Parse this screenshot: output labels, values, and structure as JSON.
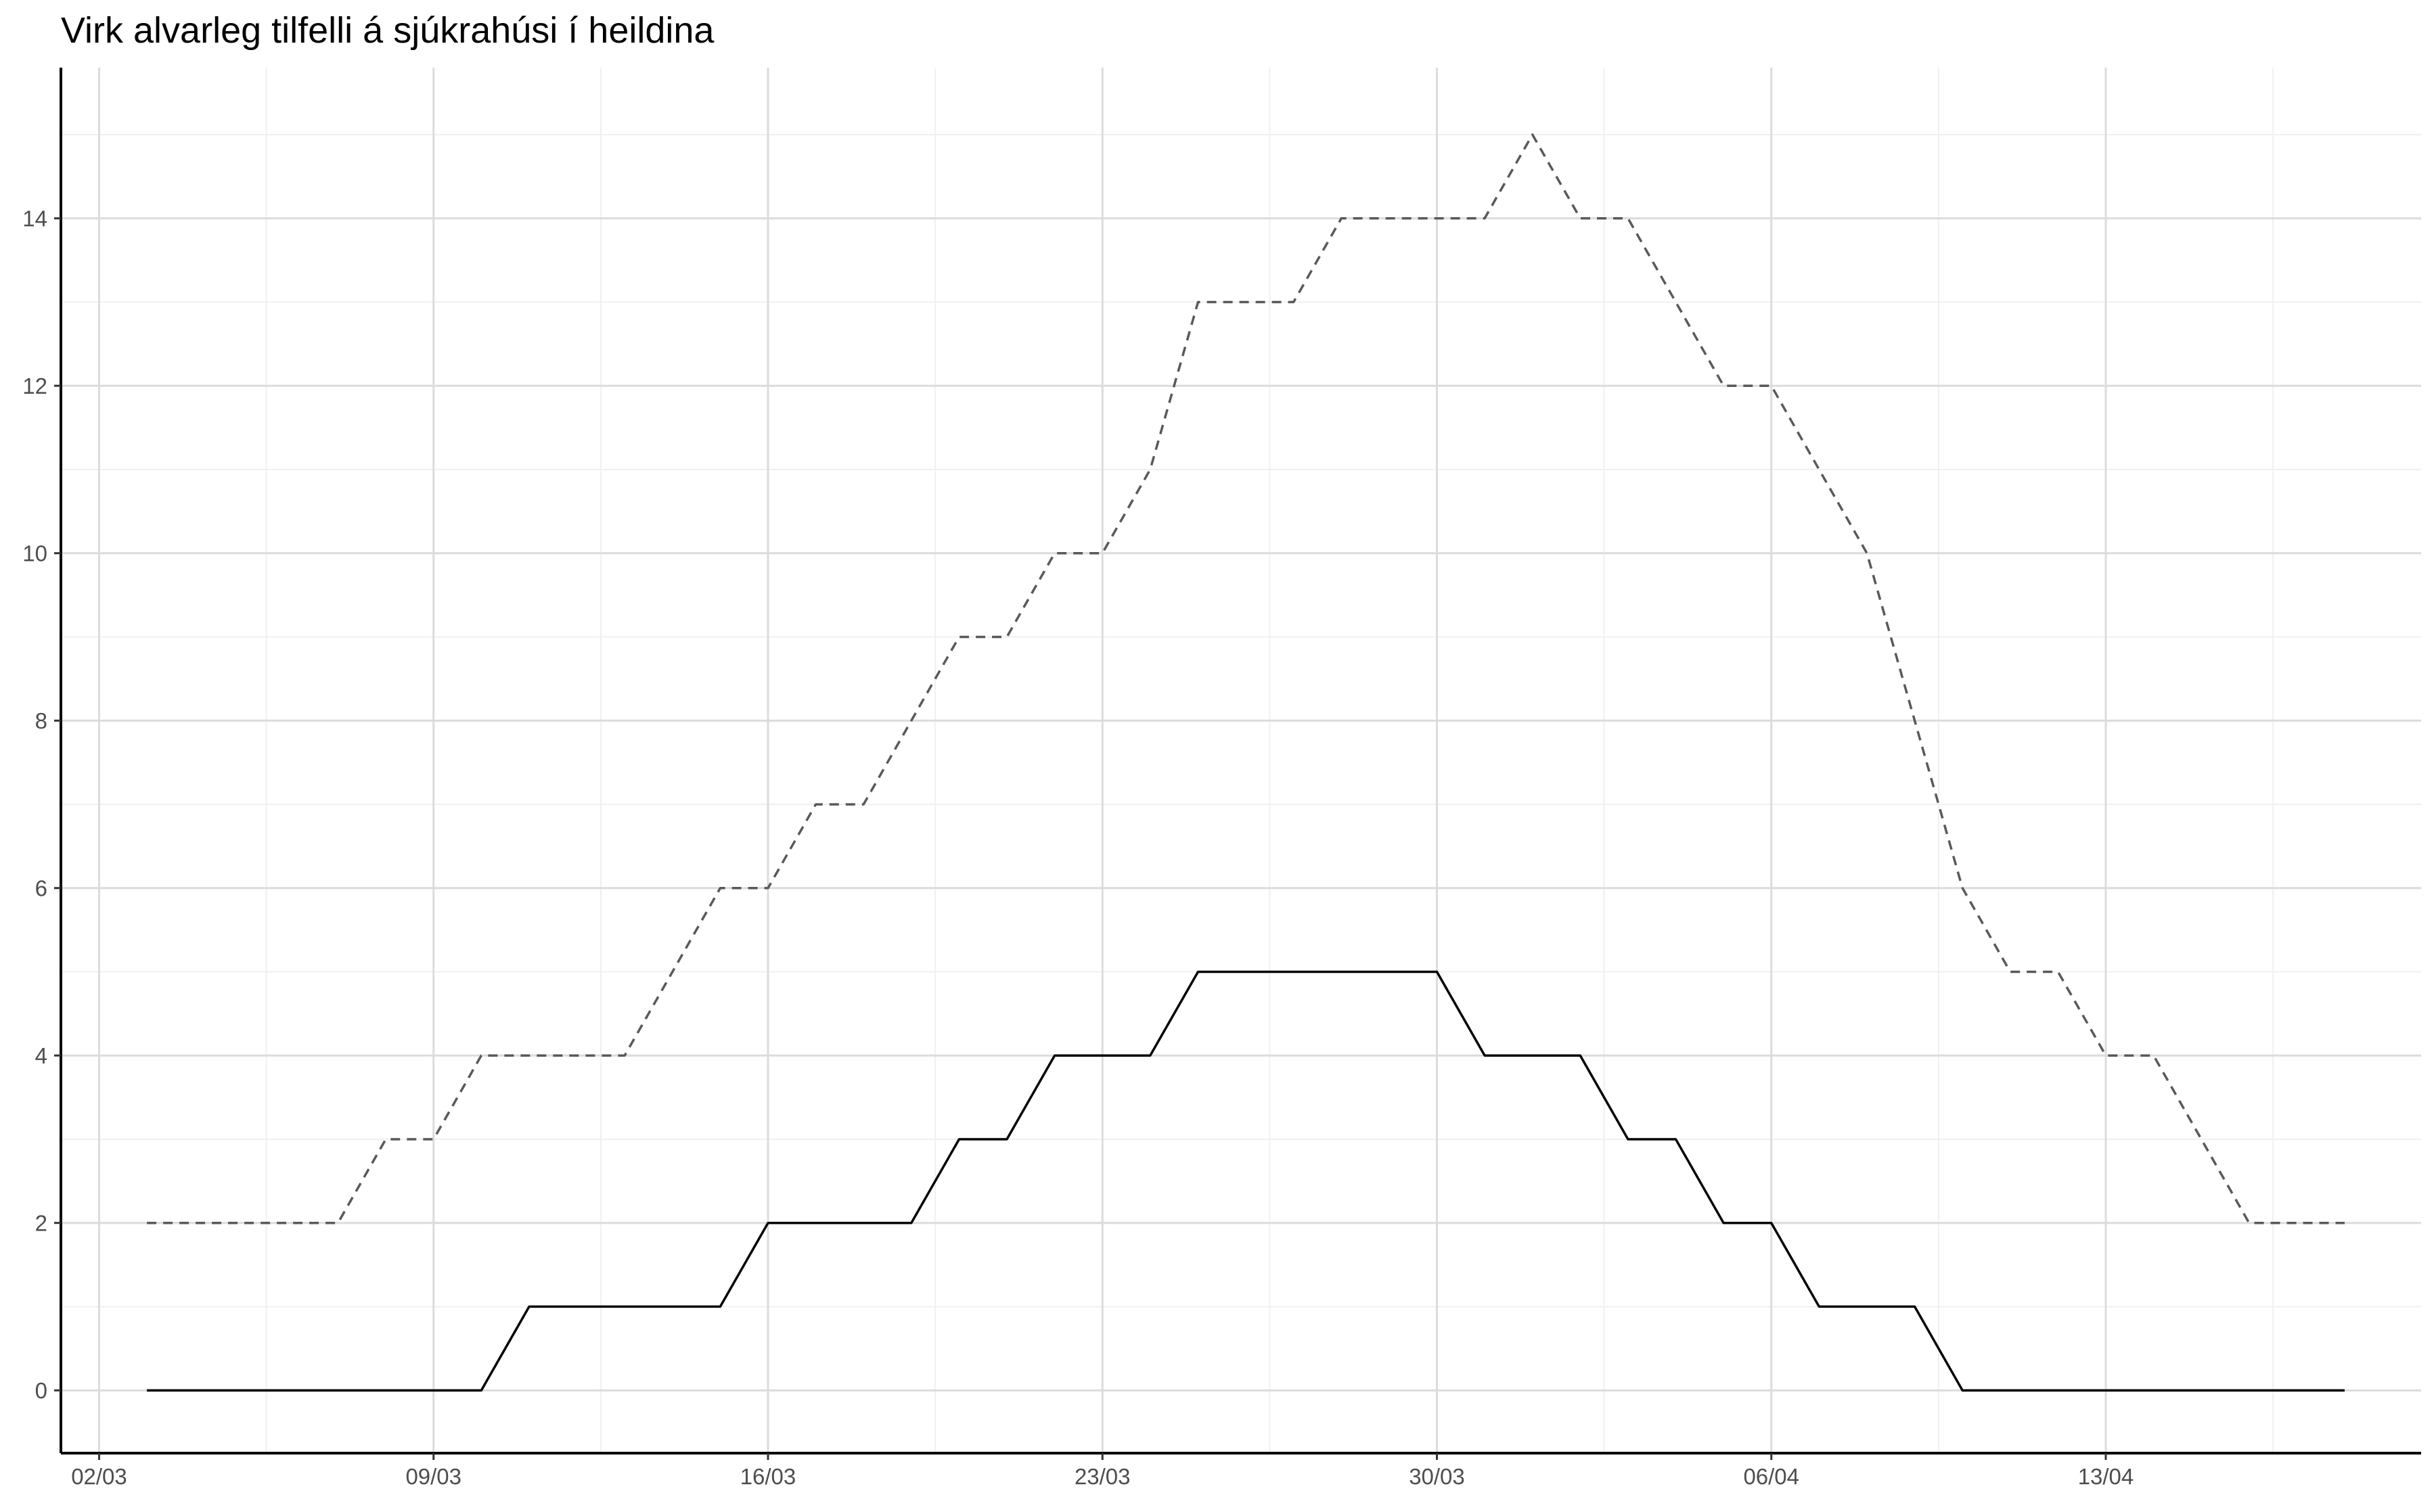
{
  "chart_data": {
    "type": "line",
    "title": "Virk alvarleg tilfelli á sjúkrahúsi í heildina",
    "xlabel": "",
    "ylabel": "",
    "x_tick_labels": [
      "02/03",
      "09/03",
      "16/03",
      "23/03",
      "30/03",
      "06/04",
      "13/04"
    ],
    "y_ticks": [
      0,
      2,
      4,
      6,
      8,
      10,
      12,
      14
    ],
    "x_start_label": "02/03",
    "xlim_days": [
      -0.8,
      48.6
    ],
    "ylim": [
      -0.75,
      15.8
    ],
    "grid": true,
    "legend": "none",
    "series": [
      {
        "style": "dashed",
        "color": "#595959",
        "x": [
          1,
          2,
          3,
          4,
          5,
          6,
          7,
          8,
          9,
          10,
          11,
          12,
          13,
          14,
          15,
          16,
          17,
          18,
          19,
          20,
          21,
          22,
          23,
          24,
          25,
          26,
          27,
          28,
          29,
          30,
          31,
          32,
          33,
          34,
          35,
          36,
          37,
          38,
          39,
          40,
          41,
          42,
          43,
          44,
          45,
          46,
          47
        ],
        "y": [
          2,
          2,
          2,
          2,
          2,
          3,
          3,
          4,
          4,
          4,
          4,
          5,
          6,
          6,
          7,
          7,
          8,
          9,
          9,
          10,
          10,
          11,
          13,
          13,
          13,
          14,
          14,
          14,
          14,
          15,
          14,
          14,
          13,
          12,
          12,
          11,
          10,
          8,
          6,
          5,
          5,
          4,
          4,
          3,
          2,
          2,
          2
        ]
      },
      {
        "style": "solid",
        "color": "#000000",
        "x": [
          1,
          2,
          3,
          4,
          5,
          6,
          7,
          8,
          9,
          10,
          11,
          12,
          13,
          14,
          15,
          16,
          17,
          18,
          19,
          20,
          21,
          22,
          23,
          24,
          25,
          26,
          27,
          28,
          29,
          30,
          31,
          32,
          33,
          34,
          35,
          36,
          37,
          38,
          39,
          40,
          41,
          42,
          43,
          44,
          45,
          46,
          47
        ],
        "y": [
          0,
          0,
          0,
          0,
          0,
          0,
          0,
          0,
          1,
          1,
          1,
          1,
          1,
          2,
          2,
          2,
          2,
          3,
          3,
          4,
          4,
          4,
          5,
          5,
          5,
          5,
          5,
          5,
          4,
          4,
          4,
          3,
          3,
          2,
          2,
          1,
          1,
          1,
          0,
          0,
          0,
          0,
          0,
          0,
          0,
          0,
          0
        ]
      }
    ]
  }
}
